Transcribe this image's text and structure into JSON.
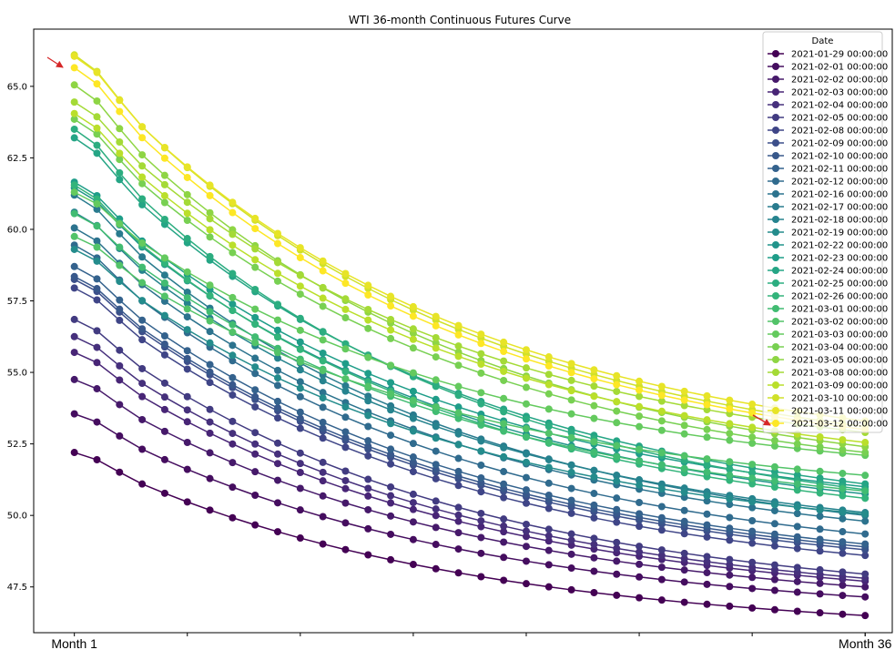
{
  "chart_data": {
    "type": "line",
    "title": "WTI 36-month Continuous Futures Curve",
    "xlabel": "",
    "ylabel": "",
    "x": [
      1,
      2,
      3,
      4,
      5,
      6,
      7,
      8,
      9,
      10,
      11,
      12,
      13,
      14,
      15,
      16,
      17,
      18,
      19,
      20,
      21,
      22,
      23,
      24,
      25,
      26,
      27,
      28,
      29,
      30,
      31,
      32,
      33,
      34,
      35,
      36
    ],
    "xtick_labels": [
      {
        "x": 1,
        "label": "Month 1"
      },
      {
        "x": 36,
        "label": "Month 36"
      }
    ],
    "xlim": [
      -0.8,
      37.2
    ],
    "ylim": [
      45.9,
      67.0
    ],
    "yticks": [
      47.5,
      50.0,
      52.5,
      55.0,
      57.5,
      60.0,
      62.5,
      65.0
    ],
    "ytick_labels": [
      "47.5",
      "50.0",
      "52.5",
      "55.0",
      "57.5",
      "60.0",
      "62.5",
      "65.0"
    ],
    "legend_title": "Date",
    "legend_position": "top-right",
    "colormap": "viridis",
    "series": [
      {
        "name": "2021-01-29 00:00:00",
        "start": 52.2,
        "end": 46.5
      },
      {
        "name": "2021-02-01 00:00:00",
        "start": 53.55,
        "end": 47.15
      },
      {
        "name": "2021-02-02 00:00:00",
        "start": 54.75,
        "end": 47.5
      },
      {
        "name": "2021-02-03 00:00:00",
        "start": 55.7,
        "end": 47.7
      },
      {
        "name": "2021-02-04 00:00:00",
        "start": 56.25,
        "end": 47.8
      },
      {
        "name": "2021-02-05 00:00:00",
        "start": 56.85,
        "end": 47.95
      },
      {
        "name": "2021-02-08 00:00:00",
        "start": 57.95,
        "end": 48.6
      },
      {
        "name": "2021-02-09 00:00:00",
        "start": 58.25,
        "end": 48.8
      },
      {
        "name": "2021-02-10 00:00:00",
        "start": 58.35,
        "end": 48.9
      },
      {
        "name": "2021-02-11 00:00:00",
        "start": 58.7,
        "end": 49.0
      },
      {
        "name": "2021-02-12 00:00:00",
        "start": 59.45,
        "end": 49.35
      },
      {
        "name": "2021-02-16 00:00:00",
        "start": 60.05,
        "end": 49.8
      },
      {
        "name": "2021-02-17 00:00:00",
        "start": 61.2,
        "end": 50.0
      },
      {
        "name": "2021-02-18 00:00:00",
        "start": 60.6,
        "end": 50.1
      },
      {
        "name": "2021-02-19 00:00:00",
        "start": 59.3,
        "end": 50.05
      },
      {
        "name": "2021-02-22 00:00:00",
        "start": 61.45,
        "end": 50.75
      },
      {
        "name": "2021-02-23 00:00:00",
        "start": 61.65,
        "end": 51.0
      },
      {
        "name": "2021-02-24 00:00:00",
        "start": 63.2,
        "end": 51.1
      },
      {
        "name": "2021-02-25 00:00:00",
        "start": 63.5,
        "end": 50.9
      },
      {
        "name": "2021-02-26 00:00:00",
        "start": 61.55,
        "end": 50.6
      },
      {
        "name": "2021-03-01 00:00:00",
        "start": 60.55,
        "end": 50.85
      },
      {
        "name": "2021-03-02 00:00:00",
        "start": 59.75,
        "end": 51.4
      },
      {
        "name": "2021-03-03 00:00:00",
        "start": 61.3,
        "end": 52.1
      },
      {
        "name": "2021-03-04 00:00:00",
        "start": 63.85,
        "end": 52.2
      },
      {
        "name": "2021-03-05 00:00:00",
        "start": 65.05,
        "end": 52.4
      },
      {
        "name": "2021-03-08 00:00:00",
        "start": 64.45,
        "end": 52.9
      },
      {
        "name": "2021-03-09 00:00:00",
        "start": 64.05,
        "end": 52.55
      },
      {
        "name": "2021-03-10 00:00:00",
        "start": 66.1,
        "end": 53.1
      },
      {
        "name": "2021-03-11 00:00:00",
        "start": 66.05,
        "end": 53.3
      },
      {
        "name": "2021-03-12 00:00:00",
        "start": 65.65,
        "end": 53.0
      }
    ],
    "annotations": [
      {
        "type": "arrow",
        "color": "#d62728",
        "points_to": "2021-03-12 00:00:00 at Month 1"
      },
      {
        "type": "arrow",
        "color": "#d62728",
        "points_to": "2021-03-12 00:00:00 at Month 36"
      }
    ]
  }
}
